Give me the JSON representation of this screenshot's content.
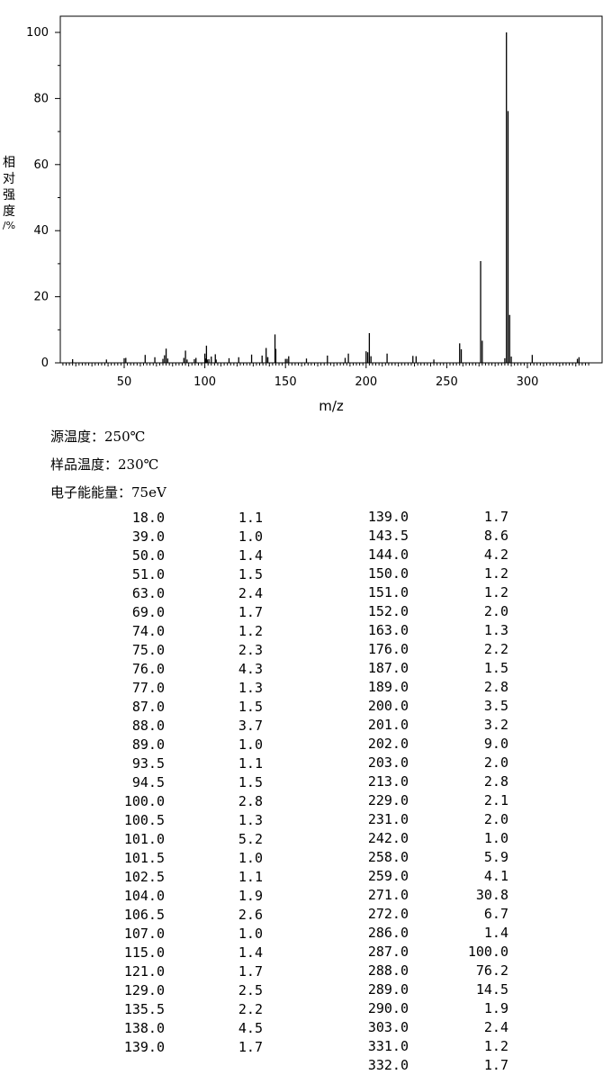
{
  "chart_data": {
    "type": "bar",
    "xlabel": "m/z",
    "ylabel_chars": [
      "相",
      "对",
      "强",
      "度",
      "/%"
    ],
    "xlim": [
      10,
      340
    ],
    "ylim": [
      0,
      100
    ],
    "xticks": [
      50,
      100,
      150,
      200,
      250,
      300
    ],
    "yticks": [
      0,
      20,
      40,
      60,
      80,
      100
    ],
    "peaks": [
      {
        "mz": 18.0,
        "intensity": 1.1
      },
      {
        "mz": 39.0,
        "intensity": 1.0
      },
      {
        "mz": 50.0,
        "intensity": 1.4
      },
      {
        "mz": 51.0,
        "intensity": 1.5
      },
      {
        "mz": 63.0,
        "intensity": 2.4
      },
      {
        "mz": 69.0,
        "intensity": 1.7
      },
      {
        "mz": 74.0,
        "intensity": 1.2
      },
      {
        "mz": 75.0,
        "intensity": 2.3
      },
      {
        "mz": 76.0,
        "intensity": 4.3
      },
      {
        "mz": 77.0,
        "intensity": 1.3
      },
      {
        "mz": 87.0,
        "intensity": 1.5
      },
      {
        "mz": 88.0,
        "intensity": 3.7
      },
      {
        "mz": 89.0,
        "intensity": 1.0
      },
      {
        "mz": 93.5,
        "intensity": 1.1
      },
      {
        "mz": 94.5,
        "intensity": 1.5
      },
      {
        "mz": 100.0,
        "intensity": 2.8
      },
      {
        "mz": 100.5,
        "intensity": 1.3
      },
      {
        "mz": 101.0,
        "intensity": 5.2
      },
      {
        "mz": 101.5,
        "intensity": 1.0
      },
      {
        "mz": 102.5,
        "intensity": 1.1
      },
      {
        "mz": 104.0,
        "intensity": 1.9
      },
      {
        "mz": 106.5,
        "intensity": 2.6
      },
      {
        "mz": 107.0,
        "intensity": 1.0
      },
      {
        "mz": 115.0,
        "intensity": 1.4
      },
      {
        "mz": 121.0,
        "intensity": 1.7
      },
      {
        "mz": 129.0,
        "intensity": 2.5
      },
      {
        "mz": 135.5,
        "intensity": 2.2
      },
      {
        "mz": 138.0,
        "intensity": 4.5
      },
      {
        "mz": 139.0,
        "intensity": 1.7
      },
      {
        "mz": 139.0,
        "intensity": 1.7
      },
      {
        "mz": 143.5,
        "intensity": 8.6
      },
      {
        "mz": 144.0,
        "intensity": 4.2
      },
      {
        "mz": 150.0,
        "intensity": 1.2
      },
      {
        "mz": 151.0,
        "intensity": 1.2
      },
      {
        "mz": 152.0,
        "intensity": 2.0
      },
      {
        "mz": 163.0,
        "intensity": 1.3
      },
      {
        "mz": 176.0,
        "intensity": 2.2
      },
      {
        "mz": 187.0,
        "intensity": 1.5
      },
      {
        "mz": 189.0,
        "intensity": 2.8
      },
      {
        "mz": 200.0,
        "intensity": 3.5
      },
      {
        "mz": 201.0,
        "intensity": 3.2
      },
      {
        "mz": 202.0,
        "intensity": 9.0
      },
      {
        "mz": 203.0,
        "intensity": 2.0
      },
      {
        "mz": 213.0,
        "intensity": 2.8
      },
      {
        "mz": 229.0,
        "intensity": 2.1
      },
      {
        "mz": 231.0,
        "intensity": 2.0
      },
      {
        "mz": 242.0,
        "intensity": 1.0
      },
      {
        "mz": 258.0,
        "intensity": 5.9
      },
      {
        "mz": 259.0,
        "intensity": 4.1
      },
      {
        "mz": 271.0,
        "intensity": 30.8
      },
      {
        "mz": 272.0,
        "intensity": 6.7
      },
      {
        "mz": 286.0,
        "intensity": 1.4
      },
      {
        "mz": 287.0,
        "intensity": 100.0
      },
      {
        "mz": 288.0,
        "intensity": 76.2
      },
      {
        "mz": 289.0,
        "intensity": 14.5
      },
      {
        "mz": 290.0,
        "intensity": 1.9
      },
      {
        "mz": 303.0,
        "intensity": 2.4
      },
      {
        "mz": 331.0,
        "intensity": 1.2
      },
      {
        "mz": 332.0,
        "intensity": 1.7
      }
    ]
  },
  "conditions": [
    {
      "label": "源温度：",
      "value": "250℃"
    },
    {
      "label": "样品温度：",
      "value": "230℃"
    },
    {
      "label": "电子能能量：",
      "value": "75eV"
    }
  ],
  "table": {
    "left": [
      [
        "18.0",
        "1.1"
      ],
      [
        "39.0",
        "1.0"
      ],
      [
        "50.0",
        "1.4"
      ],
      [
        "51.0",
        "1.5"
      ],
      [
        "63.0",
        "2.4"
      ],
      [
        "69.0",
        "1.7"
      ],
      [
        "74.0",
        "1.2"
      ],
      [
        "75.0",
        "2.3"
      ],
      [
        "76.0",
        "4.3"
      ],
      [
        "77.0",
        "1.3"
      ],
      [
        "87.0",
        "1.5"
      ],
      [
        "88.0",
        "3.7"
      ],
      [
        "89.0",
        "1.0"
      ],
      [
        "93.5",
        "1.1"
      ],
      [
        "94.5",
        "1.5"
      ],
      [
        "100.0",
        "2.8"
      ],
      [
        "100.5",
        "1.3"
      ],
      [
        "101.0",
        "5.2"
      ],
      [
        "101.5",
        "1.0"
      ],
      [
        "102.5",
        "1.1"
      ],
      [
        "104.0",
        "1.9"
      ],
      [
        "106.5",
        "2.6"
      ],
      [
        "107.0",
        "1.0"
      ],
      [
        "115.0",
        "1.4"
      ],
      [
        "121.0",
        "1.7"
      ],
      [
        "129.0",
        "2.5"
      ],
      [
        "135.5",
        "2.2"
      ],
      [
        "138.0",
        "4.5"
      ],
      [
        "139.0",
        "1.7"
      ]
    ],
    "right": [
      [
        "139.0",
        "1.7"
      ],
      [
        "143.5",
        "8.6"
      ],
      [
        "144.0",
        "4.2"
      ],
      [
        "150.0",
        "1.2"
      ],
      [
        "151.0",
        "1.2"
      ],
      [
        "152.0",
        "2.0"
      ],
      [
        "163.0",
        "1.3"
      ],
      [
        "176.0",
        "2.2"
      ],
      [
        "187.0",
        "1.5"
      ],
      [
        "189.0",
        "2.8"
      ],
      [
        "200.0",
        "3.5"
      ],
      [
        "201.0",
        "3.2"
      ],
      [
        "202.0",
        "9.0"
      ],
      [
        "203.0",
        "2.0"
      ],
      [
        "213.0",
        "2.8"
      ],
      [
        "229.0",
        "2.1"
      ],
      [
        "231.0",
        "2.0"
      ],
      [
        "242.0",
        "1.0"
      ],
      [
        "258.0",
        "5.9"
      ],
      [
        "259.0",
        "4.1"
      ],
      [
        "271.0",
        "30.8"
      ],
      [
        "272.0",
        "6.7"
      ],
      [
        "286.0",
        "1.4"
      ],
      [
        "287.0",
        "100.0"
      ],
      [
        "288.0",
        "76.2"
      ],
      [
        "289.0",
        "14.5"
      ],
      [
        "290.0",
        "1.9"
      ],
      [
        "303.0",
        "2.4"
      ],
      [
        "331.0",
        "1.2"
      ],
      [
        "332.0",
        "1.7"
      ]
    ]
  }
}
